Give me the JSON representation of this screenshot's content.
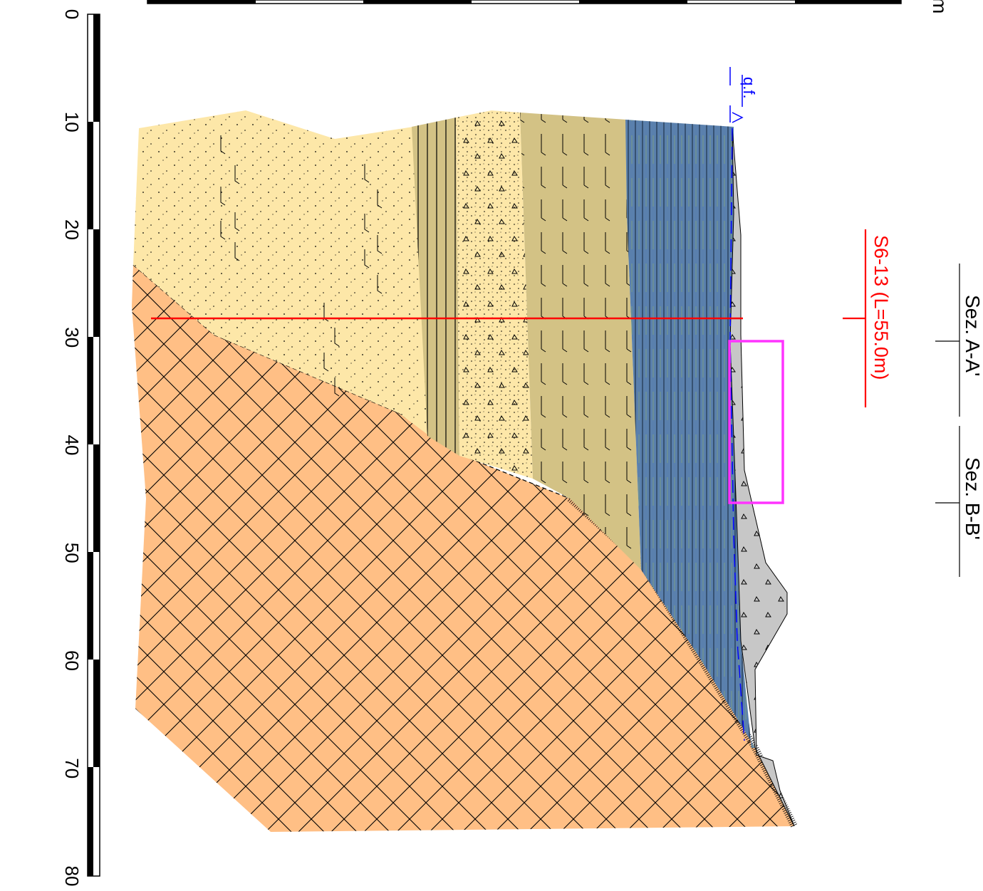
{
  "colors": {
    "layer_light_sand": "#fde7a8",
    "layer_tan_silt": "#d3c285",
    "layer_blue_clay": "#5a80ad",
    "layer_grey_fill": "#c7c7c7",
    "bedrock_orange": "#ffbf85",
    "borehole_red": "#ff0000",
    "highlight_box": "#ff33ff",
    "groundwater_blue": "#0000ff"
  },
  "scale": {
    "unit": "m",
    "ticks": [
      "0",
      "10",
      "20",
      "30",
      "40",
      "50",
      "60",
      "70",
      "80"
    ]
  },
  "sections": [
    {
      "label": "Sez. A-A'"
    },
    {
      "label": "Sez. B-B'"
    }
  ],
  "borehole": {
    "label": "S6-13 (L=55.0m)"
  },
  "groundwater": {
    "label": "q.f.",
    "icon": "water-table-triangle-icon"
  }
}
